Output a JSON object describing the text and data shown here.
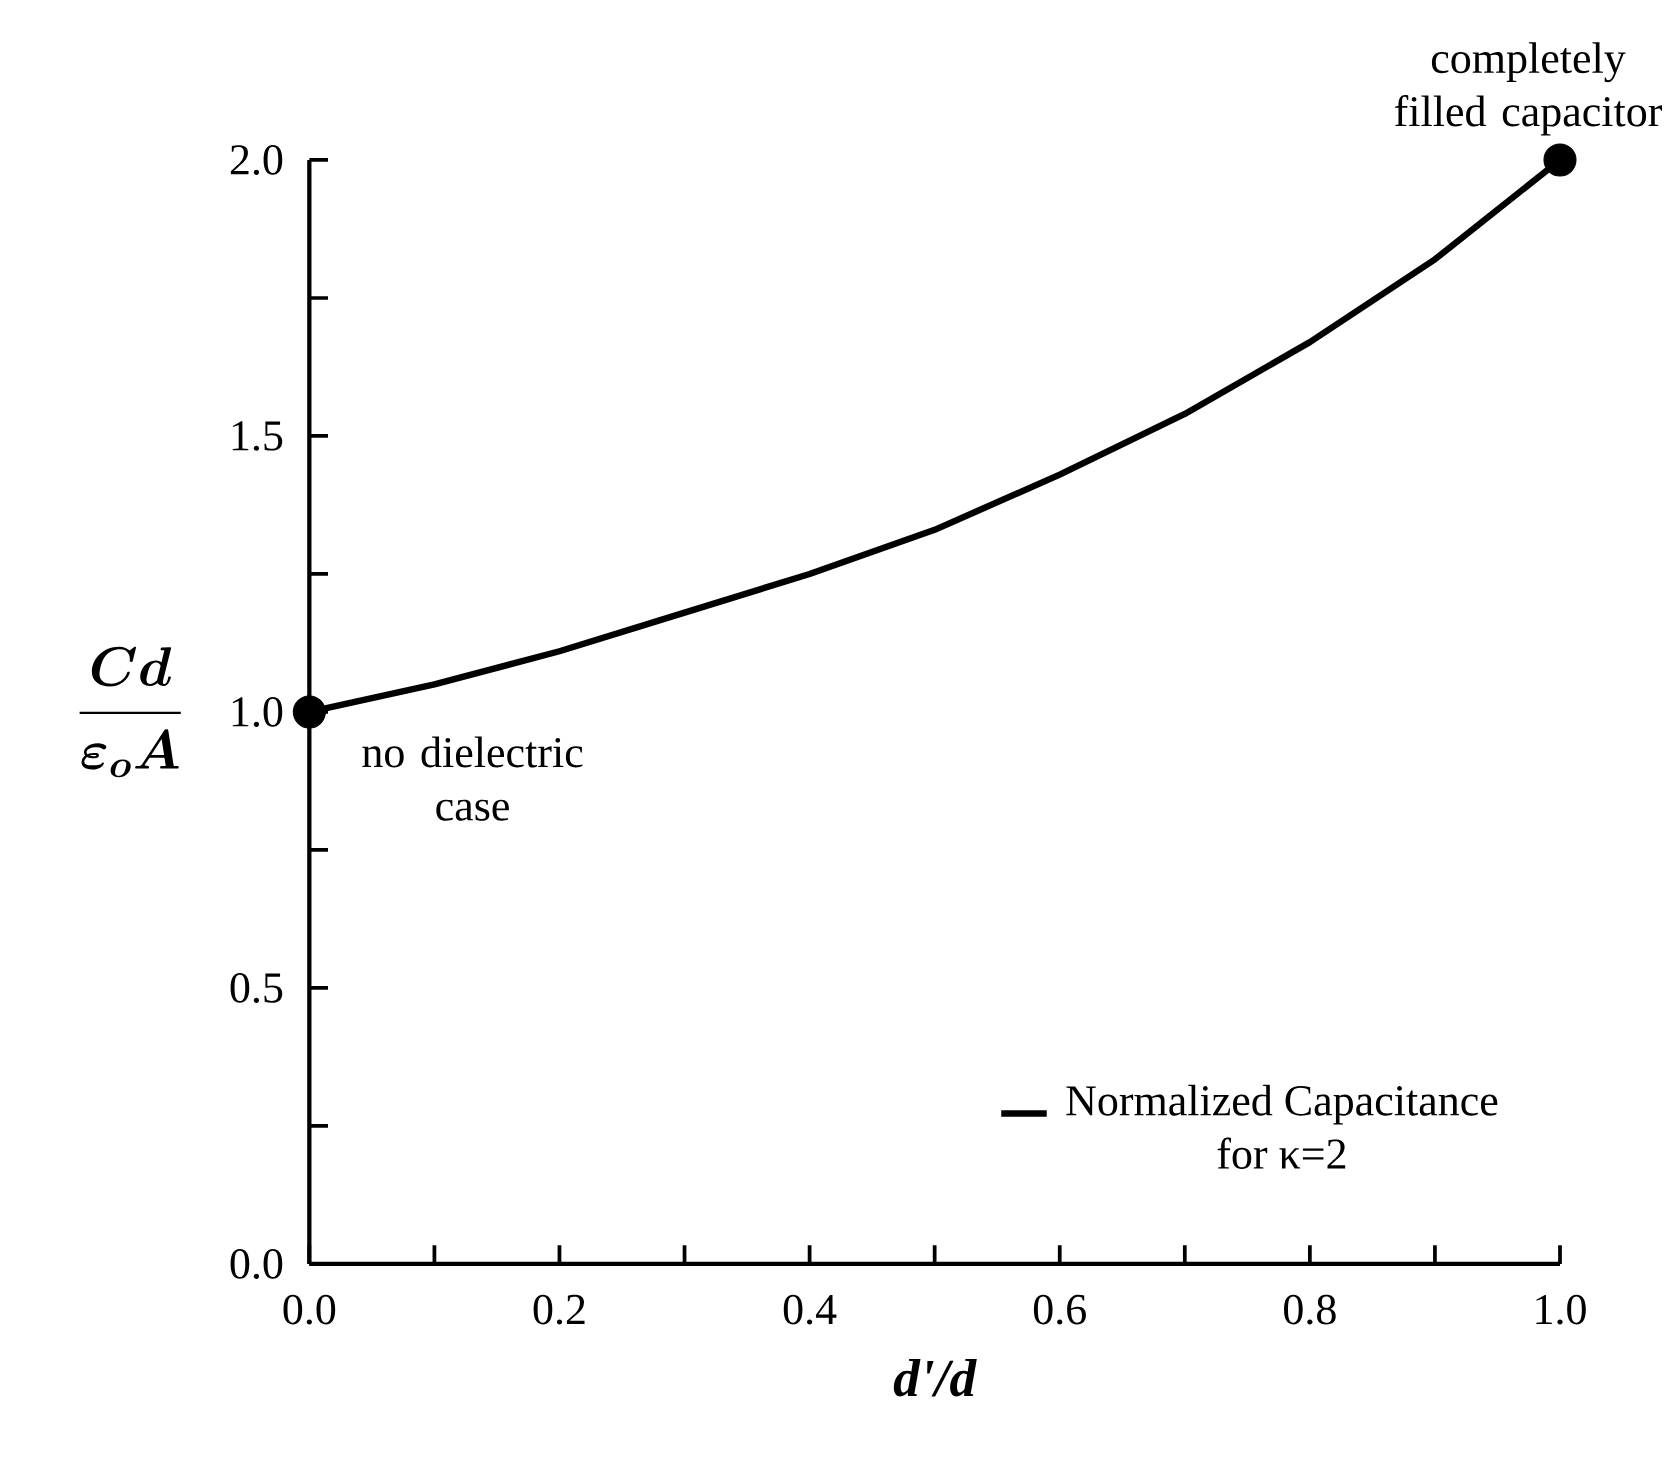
{
  "chart_data": {
    "type": "line",
    "xlabel": "d'/d",
    "ylabel": "\\frac{Cd}{\\varepsilon_{o} A}",
    "x": [
      0,
      0.1,
      0.2,
      0.3,
      0.4,
      0.5,
      0.6,
      0.7,
      0.8,
      0.9,
      1.0
    ],
    "series": [
      {
        "name": "Normalized Capacitance for κ=2",
        "color": "#000000",
        "marker": "none",
        "values": [
          1.0,
          1.05,
          1.11,
          1.18,
          1.25,
          1.33,
          1.43,
          1.54,
          1.67,
          1.82,
          2.0
        ]
      },
      {
        "color": "#000000",
        "type": "scatter",
        "marker": "circle",
        "x": [
          0,
          1.0
        ],
        "values": [
          1.0,
          2.0
        ]
      }
    ],
    "xlim": [
      0,
      1.0
    ],
    "ylim": [
      0,
      2.0
    ],
    "xticks": [
      {
        "value": 0,
        "label": "0.0"
      },
      {
        "value": 0.1,
        "label": null
      },
      {
        "value": 0.2,
        "label": "0.2"
      },
      {
        "value": 0.3,
        "label": null
      },
      {
        "value": 0.4,
        "label": "0.4"
      },
      {
        "value": 0.5,
        "label": null
      },
      {
        "value": 0.6,
        "label": "0.6"
      },
      {
        "value": 0.7,
        "label": null
      },
      {
        "value": 0.8,
        "label": "0.8"
      },
      {
        "value": 0.9,
        "label": null
      },
      {
        "value": 1.0,
        "label": "1.0"
      }
    ],
    "yticks": [
      {
        "value": 0,
        "label": "0.0"
      },
      {
        "value": 0.25,
        "label": null
      },
      {
        "value": 0.5,
        "label": "0.5"
      },
      {
        "value": 0.75,
        "label": null
      },
      {
        "value": 1.0,
        "label": "1.0"
      },
      {
        "value": 1.25,
        "label": null
      },
      {
        "value": 1.5,
        "label": "1.5"
      },
      {
        "value": 1.75,
        "label": null
      },
      {
        "value": 2.0,
        "label": "2.0"
      }
    ],
    "annotations": [
      {
        "text": "no dielectric case",
        "x": 0,
        "y": 1.0
      },
      {
        "text": "completely filled capacitor",
        "x": 1.0,
        "y": 2.0
      }
    ],
    "legend": "bottom right",
    "grid": false
  }
}
